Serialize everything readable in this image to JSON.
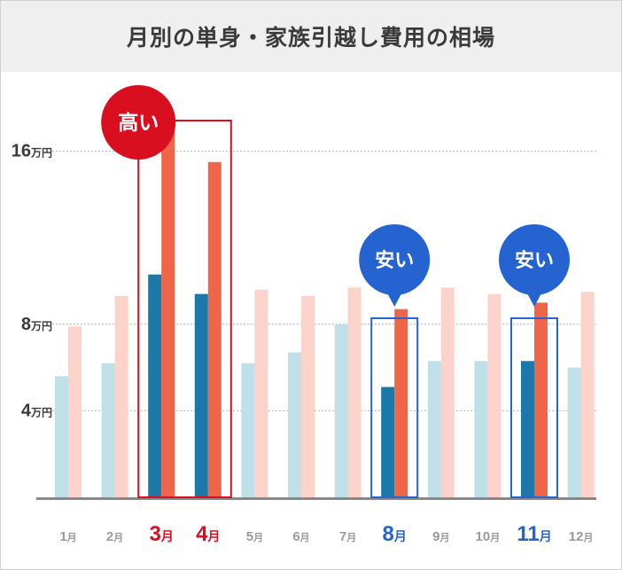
{
  "chart_data": {
    "type": "bar",
    "title": "月別の単身・家族引越し費用の相場",
    "categories": [
      "1月",
      "2月",
      "3月",
      "4月",
      "5月",
      "6月",
      "7月",
      "8月",
      "9月",
      "10月",
      "11月",
      "12月"
    ],
    "series": [
      {
        "values": [
          5.6,
          6.2,
          10.3,
          9.4,
          6.2,
          6.7,
          8.0,
          5.1,
          6.3,
          6.3,
          6.3,
          6.0
        ]
      },
      {
        "values": [
          7.9,
          9.3,
          17.5,
          15.5,
          9.6,
          9.3,
          9.7,
          8.7,
          9.7,
          9.4,
          9.0,
          9.5
        ]
      }
    ],
    "yticks": [
      {
        "value": 16,
        "num": "16",
        "unit": "万円"
      },
      {
        "value": 8,
        "num": "8",
        "unit": "万円"
      },
      {
        "value": 4,
        "num": "4",
        "unit": "万円"
      }
    ],
    "ylim": [
      0,
      24
    ],
    "highlight_high": {
      "months": [
        2,
        3
      ],
      "label": "高い"
    },
    "highlight_low": [
      {
        "months": [
          7
        ],
        "label": "安い"
      },
      {
        "months": [
          10
        ],
        "label": "安い"
      }
    ],
    "grid": "dotted horizontal at ticks",
    "colors": {
      "family_strong": "#ef6548",
      "family_light": "#fbd3cb",
      "single_strong": "#1b78a8",
      "single_light": "#bfdfe9",
      "high": "#d90f1f",
      "low": "#2563d0",
      "axis": "#888888",
      "tick_text": "#3a3a3a",
      "month_text": "#9a9a9a"
    }
  }
}
